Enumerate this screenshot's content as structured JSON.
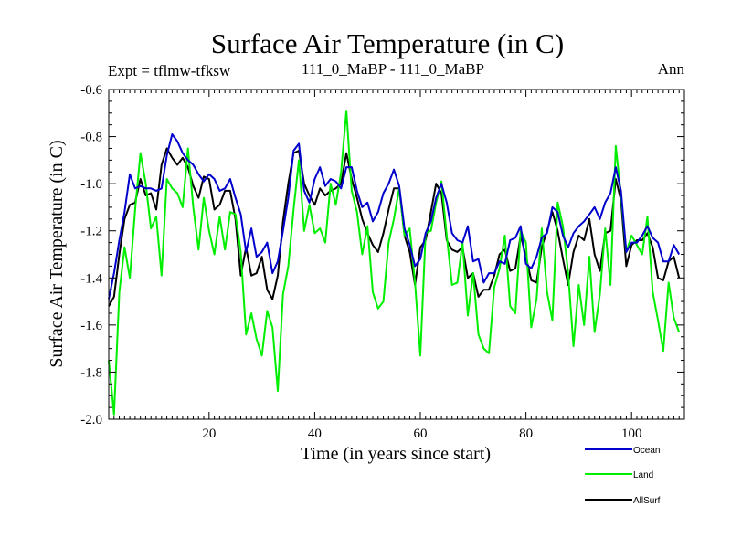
{
  "chart_data": {
    "type": "line",
    "title": "Surface Air Temperature (in C)",
    "subtitle_left": "Expt = tflmw-tfksw",
    "subtitle_center": "111_0_MaBP - 111_0_MaBP",
    "subtitle_right": "Ann",
    "xlabel": "Time (in years since start)",
    "ylabel": "Surface Air Temperature (in C)",
    "xlim": [
      1,
      110
    ],
    "ylim": [
      -2.0,
      -0.6
    ],
    "x_ticks": [
      20,
      40,
      60,
      80,
      100
    ],
    "y_ticks": [
      -2.0,
      -1.8,
      -1.6,
      -1.4,
      -1.2,
      -1.0,
      -0.8,
      -0.6
    ],
    "y_tick_labels": [
      "-2.0",
      "-1.8",
      "-1.6",
      "-1.4",
      "-1.2",
      "-1.0",
      "-0.8",
      "-0.6"
    ],
    "legend_position": "bottom-right, outside plot",
    "series": [
      {
        "name": "Ocean",
        "color": "#0000cc",
        "values": [
          -1.49,
          -1.38,
          -1.24,
          -1.12,
          -0.96,
          -1.02,
          -1.01,
          -1.02,
          -1.02,
          -1.03,
          -1.02,
          -0.88,
          -0.79,
          -0.82,
          -0.87,
          -0.9,
          -0.92,
          -0.96,
          -0.99,
          -0.96,
          -0.98,
          -1.03,
          -1.02,
          -0.98,
          -1.06,
          -1.13,
          -1.29,
          -1.19,
          -1.31,
          -1.29,
          -1.25,
          -1.38,
          -1.33,
          -1.2,
          -1.06,
          -0.86,
          -0.83,
          -1.03,
          -1.08,
          -0.98,
          -0.93,
          -1.01,
          -0.98,
          -0.99,
          -1.02,
          -0.93,
          -0.93,
          -1.03,
          -1.1,
          -1.08,
          -1.16,
          -1.12,
          -1.04,
          -1.0,
          -0.94,
          -1.01,
          -1.19,
          -1.26,
          -1.35,
          -1.32,
          -1.21,
          -1.16,
          -1.06,
          -1.0,
          -1.08,
          -1.21,
          -1.24,
          -1.25,
          -1.18,
          -1.33,
          -1.32,
          -1.42,
          -1.38,
          -1.38,
          -1.33,
          -1.34,
          -1.24,
          -1.23,
          -1.18,
          -1.34,
          -1.36,
          -1.31,
          -1.23,
          -1.21,
          -1.1,
          -1.12,
          -1.22,
          -1.27,
          -1.21,
          -1.18,
          -1.16,
          -1.13,
          -1.1,
          -1.15,
          -1.08,
          -1.04,
          -0.93,
          -1.03,
          -1.29,
          -1.25,
          -1.25,
          -1.22,
          -1.18,
          -1.23,
          -1.25,
          -1.33,
          -1.33,
          -1.26,
          -1.3
        ]
      },
      {
        "name": "Land",
        "color": "#00ee00",
        "values": [
          -1.75,
          -1.98,
          -1.46,
          -1.27,
          -1.4,
          -1.11,
          -0.87,
          -1.0,
          -1.19,
          -1.14,
          -1.39,
          -0.98,
          -1.02,
          -1.04,
          -1.1,
          -0.85,
          -1.1,
          -1.28,
          -1.06,
          -1.2,
          -1.3,
          -1.14,
          -1.28,
          -1.12,
          -1.13,
          -1.29,
          -1.64,
          -1.55,
          -1.66,
          -1.73,
          -1.54,
          -1.61,
          -1.88,
          -1.47,
          -1.35,
          -1.11,
          -0.9,
          -1.2,
          -1.09,
          -1.21,
          -1.19,
          -1.25,
          -1.0,
          -1.09,
          -0.95,
          -0.69,
          -1.03,
          -1.12,
          -1.3,
          -1.18,
          -1.46,
          -1.53,
          -1.5,
          -1.25,
          -1.15,
          -1.02,
          -1.22,
          -1.19,
          -1.42,
          -1.73,
          -1.21,
          -1.2,
          -1.08,
          -0.99,
          -1.22,
          -1.43,
          -1.42,
          -1.25,
          -1.56,
          -1.38,
          -1.64,
          -1.7,
          -1.72,
          -1.44,
          -1.36,
          -1.22,
          -1.52,
          -1.55,
          -1.2,
          -1.25,
          -1.61,
          -1.49,
          -1.19,
          -1.46,
          -1.58,
          -1.08,
          -1.18,
          -1.38,
          -1.69,
          -1.43,
          -1.6,
          -1.31,
          -1.63,
          -1.47,
          -1.19,
          -1.43,
          -0.84,
          -1.05,
          -1.29,
          -1.22,
          -1.26,
          -1.3,
          -1.14,
          -1.46,
          -1.58,
          -1.71,
          -1.42,
          -1.57,
          -1.63
        ]
      },
      {
        "name": "AllSurf",
        "color": "#000000",
        "values": [
          -1.52,
          -1.48,
          -1.3,
          -1.15,
          -1.09,
          -1.08,
          -0.98,
          -1.05,
          -1.04,
          -1.11,
          -0.92,
          -0.85,
          -0.89,
          -0.92,
          -0.89,
          -0.93,
          -1.01,
          -1.06,
          -0.97,
          -0.98,
          -1.11,
          -1.09,
          -1.03,
          -1.03,
          -1.15,
          -1.39,
          -1.27,
          -1.39,
          -1.38,
          -1.31,
          -1.45,
          -1.49,
          -1.39,
          -1.16,
          -1.0,
          -0.87,
          -0.86,
          -1.0,
          -1.05,
          -1.09,
          -1.02,
          -1.05,
          -1.03,
          -1.02,
          -1.0,
          -0.87,
          -0.98,
          -1.06,
          -1.15,
          -1.21,
          -1.26,
          -1.29,
          -1.21,
          -1.11,
          -1.02,
          -1.02,
          -1.22,
          -1.29,
          -1.43,
          -1.27,
          -1.24,
          -1.12,
          -1.0,
          -1.04,
          -1.24,
          -1.28,
          -1.29,
          -1.27,
          -1.4,
          -1.38,
          -1.48,
          -1.45,
          -1.45,
          -1.39,
          -1.3,
          -1.28,
          -1.37,
          -1.36,
          -1.22,
          -1.31,
          -1.41,
          -1.42,
          -1.27,
          -1.2,
          -1.12,
          -1.2,
          -1.32,
          -1.43,
          -1.29,
          -1.22,
          -1.24,
          -1.15,
          -1.3,
          -1.37,
          -1.21,
          -1.2,
          -0.98,
          -1.07,
          -1.35,
          -1.26,
          -1.24,
          -1.24,
          -1.21,
          -1.27,
          -1.4,
          -1.41,
          -1.33,
          -1.31,
          -1.4
        ]
      }
    ]
  }
}
